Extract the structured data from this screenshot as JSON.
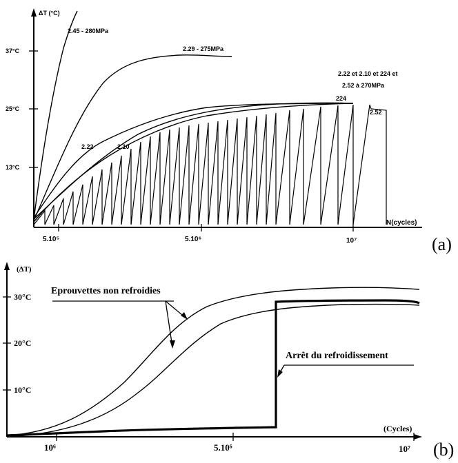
{
  "panel_a": {
    "ylabel": "ΔT (°C)",
    "xlabel": "N(cycles)",
    "yticks": [
      "37°C",
      "25°C",
      "13°C"
    ],
    "xticks": [
      "5.10⁵",
      "5.10⁶",
      "10⁷"
    ],
    "curve_labels": {
      "c245": "2.45 - 280MPa",
      "c229": "2.29 - 275MPa",
      "group_line1": "2.22 et 2.10 et 224 et",
      "group_line2": "2.52 à 270MPa",
      "c224": "224",
      "c252": "2.52",
      "c222": "2.22",
      "c210": "2.10"
    },
    "panel_label": "(a)"
  },
  "panel_b": {
    "ylabel": "(ΔT)",
    "xlabel": "(Cycles)",
    "yticks": [
      "30°C",
      "20°C",
      "10°C"
    ],
    "xticks": [
      "10⁶",
      "5.10⁶",
      "10⁷"
    ],
    "annotation_1": "Eprouvettes non refroidies",
    "annotation_2": "Arrêt du refroidissement",
    "panel_label": "(b)"
  },
  "chart_data": [
    {
      "type": "line",
      "ylabel": "ΔT (°C)",
      "xlabel": "N(cycles)",
      "y_ticks": [
        13,
        25,
        37
      ],
      "x_ticks": [
        "5.10⁵",
        "5.10⁶",
        "10⁷"
      ],
      "series": [
        {
          "name": "2.45 - 280MPa",
          "x": [
            0,
            200000,
            400000,
            700000,
            1000000
          ],
          "y": [
            2,
            22,
            33,
            40,
            46
          ]
        },
        {
          "name": "2.29 - 275MPa",
          "x": [
            0,
            1000000,
            2000000,
            3000000,
            4000000,
            5000000,
            6000000
          ],
          "y": [
            2,
            18,
            30,
            35,
            36,
            36,
            36
          ]
        },
        {
          "name": "2.22",
          "x": [
            0,
            1000000,
            2000000,
            3000000,
            4000000,
            5000000,
            6000000,
            7000000,
            8000000,
            9000000,
            10000000
          ],
          "y": [
            2,
            12,
            19,
            22,
            24,
            25,
            26,
            26,
            26,
            26,
            26
          ]
        },
        {
          "name": "2.10",
          "x": [
            0,
            1000000,
            2000000,
            3000000,
            4000000,
            5000000,
            6000000,
            7000000,
            8000000,
            9000000,
            10000000
          ],
          "y": [
            1,
            9,
            16,
            20,
            23,
            24,
            25,
            26,
            26,
            26,
            26
          ]
        },
        {
          "name": "224",
          "x": [
            0,
            2000000,
            4000000,
            6000000,
            8000000,
            9000000,
            10000000
          ],
          "y": [
            2,
            17,
            23,
            25,
            26,
            26,
            26
          ]
        },
        {
          "name": "2.52",
          "x": [
            0,
            1000000,
            2000000,
            3000000,
            4000000,
            5000000,
            6000000,
            7000000,
            8000000,
            9000000,
            10000000,
            11000000
          ],
          "y": [
            0,
            8,
            14,
            18,
            21,
            23,
            24,
            25,
            25,
            26,
            26,
            26
          ]
        }
      ]
    },
    {
      "type": "line",
      "ylabel": "(ΔT)",
      "xlabel": "(Cycles)",
      "y_ticks": [
        10,
        20,
        30
      ],
      "x_ticks": [
        "10⁶",
        "5.10⁶",
        "10⁷"
      ],
      "series": [
        {
          "name": "Eprouvettes non refroidies",
          "x": [
            0,
            1000000,
            2000000,
            3000000,
            4000000,
            5000000,
            6000000,
            7000000,
            8000000,
            9000000,
            10000000
          ],
          "y": [
            0,
            3,
            10,
            18,
            24,
            27,
            28.5,
            29,
            29.5,
            30,
            30
          ]
        },
        {
          "name": "Eprouvettes non refroidies",
          "x": [
            0,
            1000000,
            2000000,
            3000000,
            4000000,
            5000000,
            6000000,
            7000000,
            8000000,
            9000000,
            10000000
          ],
          "y": [
            0,
            2,
            7,
            14,
            20,
            24,
            25.5,
            26,
            26.5,
            26.5,
            26.5
          ]
        },
        {
          "name": "Arrêt du refroidissement",
          "x": [
            0,
            1000000,
            2000000,
            3000000,
            4000000,
            5000000,
            6000000,
            6500000,
            6500000,
            7500000,
            9000000,
            10000000
          ],
          "y": [
            0,
            1,
            1.5,
            2,
            2.3,
            2.6,
            3,
            3,
            28.5,
            29,
            28.8,
            28.3
          ]
        }
      ]
    }
  ]
}
